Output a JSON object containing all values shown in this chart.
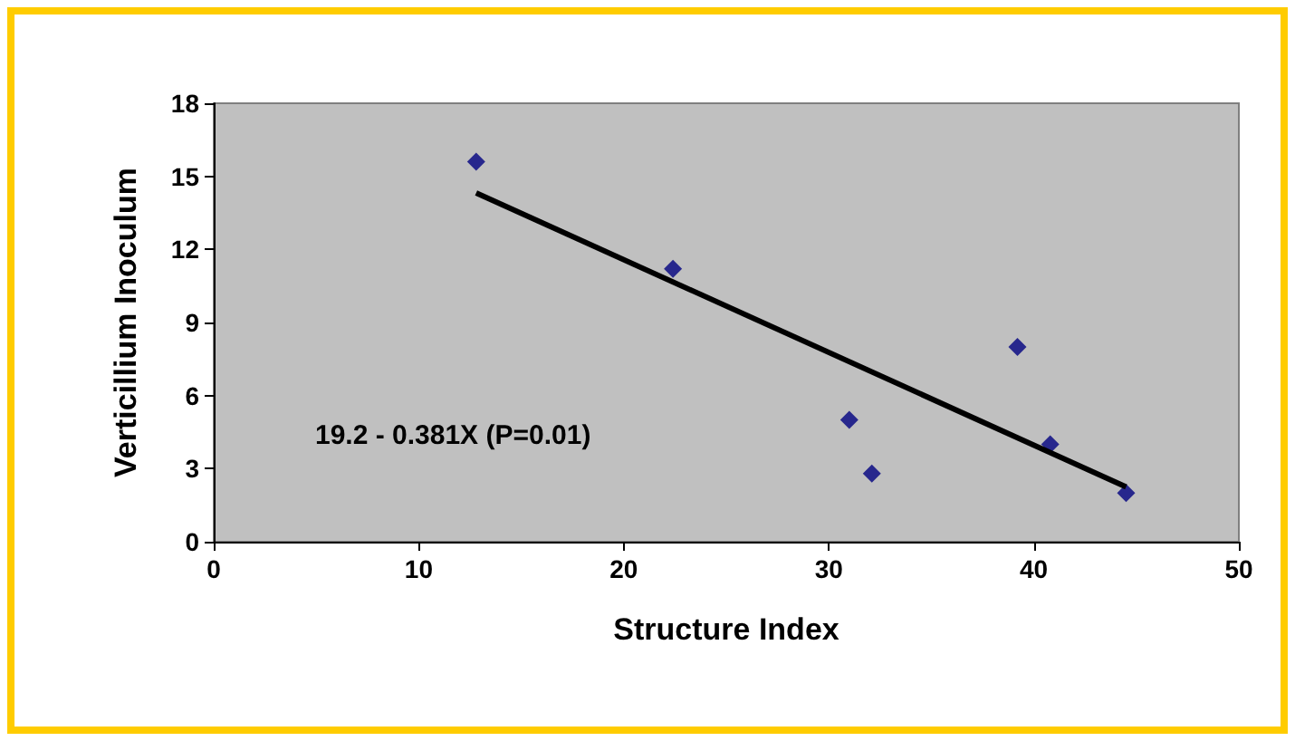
{
  "chart_data": {
    "type": "scatter",
    "xlabel": "Structure Index",
    "ylabel": "Verticillium Inoculum",
    "xlim": [
      0,
      50
    ],
    "xticks": [
      0,
      10,
      20,
      30,
      40,
      50
    ],
    "ylim": [
      0,
      18
    ],
    "yticks": [
      0,
      3,
      6,
      9,
      12,
      15,
      18
    ],
    "grid": false,
    "marker": "diamond",
    "annotations": [
      "19.2 - 0.381X (P=0.01)"
    ],
    "series": [
      {
        "color": "#000080",
        "x": [
          12.8,
          22.4,
          31.0,
          32.1,
          39.2,
          40.8,
          44.5
        ],
        "values": [
          15.6,
          11.2,
          5.0,
          2.8,
          8.0,
          4.0,
          2.0
        ]
      },
      {
        "type": "line",
        "color": "#000000",
        "marker": "none",
        "line_style": "solid",
        "x": [
          12.8,
          44.5
        ],
        "values": [
          14.32,
          2.25
        ]
      }
    ]
  }
}
